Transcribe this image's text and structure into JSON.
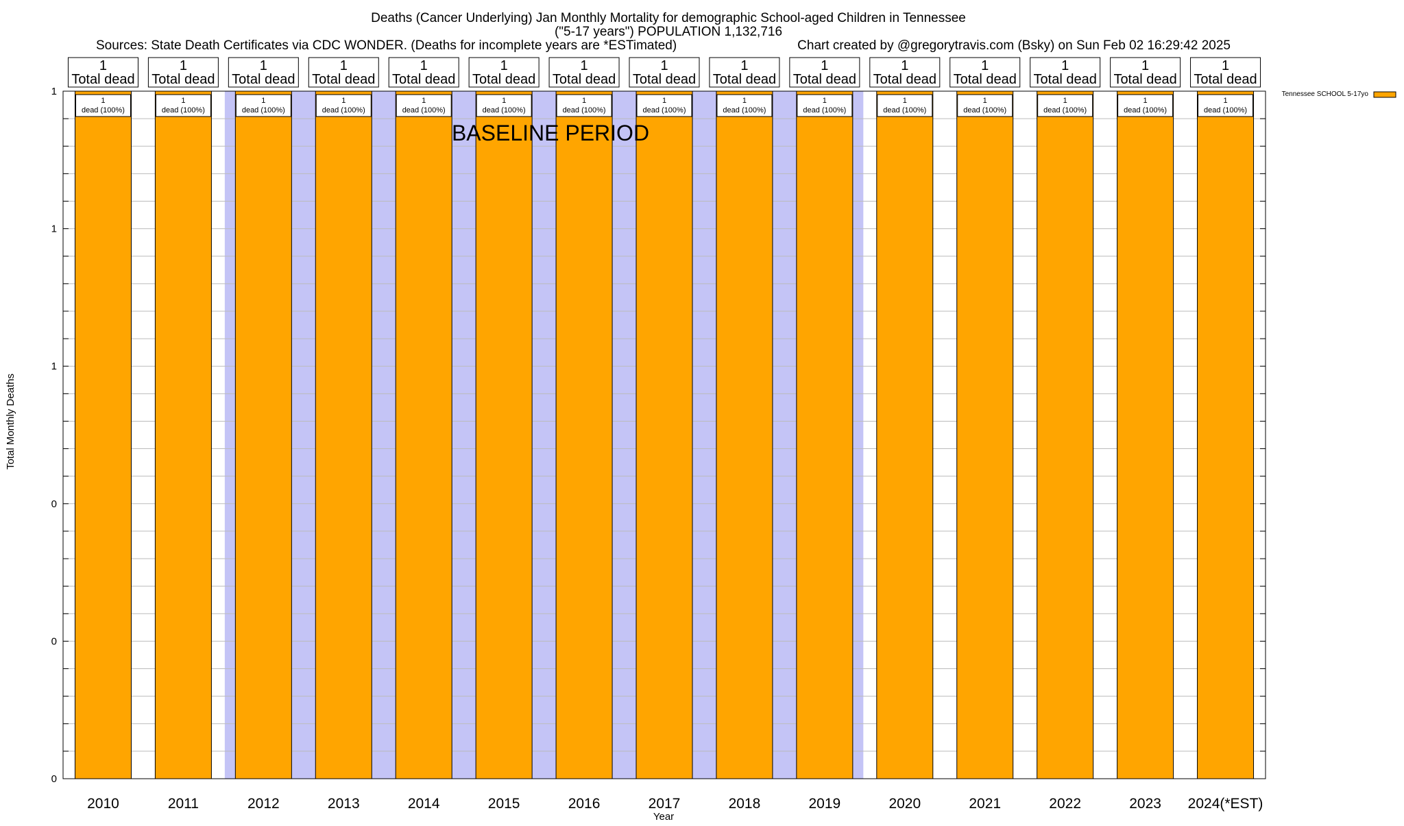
{
  "chart_data": {
    "type": "bar",
    "title_lines": [
      "Deaths (Cancer Underlying) Jan Monthly Mortality for demographic School-aged Children in Tennessee",
      "(\"5-17 years\") POPULATION 1,132,716"
    ],
    "sources": "Sources: State Death Certificates via CDC WONDER. (Deaths for incomplete years are *ESTimated)",
    "credit": "Chart created by @gregorytravis.com (Bsky) on Sun Feb 02 16:29:42 2025",
    "xlabel": "Year",
    "ylabel": "Total Monthly Deaths",
    "ylim": [
      0,
      1
    ],
    "y_ticks": [
      {
        "value": 0,
        "label": "0"
      },
      {
        "value": 0.2,
        "label": "0"
      },
      {
        "value": 0.4,
        "label": "0"
      },
      {
        "value": 0.6,
        "label": "1"
      },
      {
        "value": 0.8,
        "label": "1"
      },
      {
        "value": 1,
        "label": "1"
      }
    ],
    "y_minor_step": 0.04,
    "categories": [
      "2010",
      "2011",
      "2012",
      "2013",
      "2014",
      "2015",
      "2016",
      "2017",
      "2018",
      "2019",
      "2020",
      "2021",
      "2022",
      "2023",
      "2024(*EST)"
    ],
    "series": [
      {
        "name": "Tennessee SCHOOL 5-17yo",
        "color": "#ffa500",
        "values": [
          1,
          1,
          1,
          1,
          1,
          1,
          1,
          1,
          1,
          1,
          1,
          1,
          1,
          1,
          1
        ]
      }
    ],
    "bar_labels": [
      "1",
      "1",
      "1",
      "1",
      "1",
      "1",
      "1",
      "1",
      "1",
      "1",
      "1",
      "1",
      "1",
      "1",
      "1"
    ],
    "bar_sublabels": [
      "dead (100%)",
      "dead (100%)",
      "dead (100%)",
      "dead (100%)",
      "dead (100%)",
      "dead (100%)",
      "dead (100%)",
      "dead (100%)",
      "dead (100%)",
      "dead (100%)",
      "dead (100%)",
      "dead (100%)",
      "dead (100%)",
      "dead (100%)",
      "dead (100%)"
    ],
    "total_value_labels": [
      "1",
      "1",
      "1",
      "1",
      "1",
      "1",
      "1",
      "1",
      "1",
      "1",
      "1",
      "1",
      "1",
      "1",
      "1"
    ],
    "total_text_labels": [
      "Total dead",
      "Total dead",
      "Total dead",
      "Total dead",
      "Total dead",
      "Total dead",
      "Total dead",
      "Total dead",
      "Total dead",
      "Total dead",
      "Total dead",
      "Total dead",
      "Total dead",
      "Total dead",
      "Total dead"
    ],
    "baseline": {
      "label": "BASELINE PERIOD",
      "start": "2012",
      "end": "2019",
      "color": "#c4c4f6"
    },
    "legend": {
      "position": "top-right"
    },
    "grid": true,
    "colors": {
      "bar": "#ffa500",
      "baseline_band": "#c4c4f6",
      "grid": "#bbbbbb"
    }
  }
}
